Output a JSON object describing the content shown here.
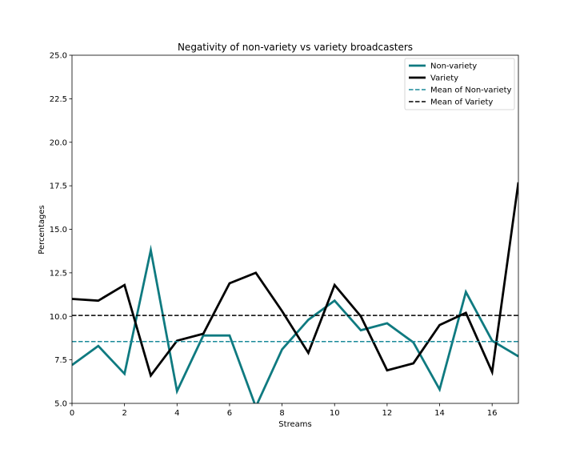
{
  "chart_data": {
    "type": "line",
    "title": "Negativity of non-variety vs variety broadcasters",
    "xlabel": "Streams",
    "ylabel": "Percentages",
    "xlim": [
      0,
      17
    ],
    "ylim": [
      5.0,
      25.0
    ],
    "x_ticks": [
      0,
      2,
      4,
      6,
      8,
      10,
      12,
      14,
      16
    ],
    "y_ticks": [
      5.0,
      7.5,
      10.0,
      12.5,
      15.0,
      17.5,
      20.0,
      22.5,
      25.0
    ],
    "x_tick_labels": [
      "0",
      "2",
      "4",
      "6",
      "8",
      "10",
      "12",
      "14",
      "16"
    ],
    "y_tick_labels": [
      "5.0",
      "7.5",
      "10.0",
      "12.5",
      "15.0",
      "17.5",
      "20.0",
      "22.5",
      "25.0"
    ],
    "grid": false,
    "legend_position": "top-right",
    "x": [
      0,
      1,
      2,
      3,
      4,
      5,
      6,
      7,
      8,
      9,
      10,
      11,
      12,
      13,
      14,
      15,
      16,
      17
    ],
    "series": [
      {
        "name": "Non-variety",
        "color": "#0f7a80",
        "style": "solid",
        "values": [
          7.2,
          8.3,
          6.7,
          13.8,
          5.7,
          8.9,
          8.9,
          4.8,
          8.1,
          9.8,
          10.9,
          9.2,
          9.6,
          8.5,
          5.8,
          11.4,
          8.6,
          7.7
        ]
      },
      {
        "name": "Variety",
        "color": "#000000",
        "style": "solid",
        "values": [
          11.0,
          10.9,
          11.8,
          6.6,
          8.6,
          9.0,
          11.9,
          12.5,
          10.3,
          7.9,
          11.8,
          10.0,
          6.9,
          7.3,
          9.5,
          10.2,
          6.8,
          17.7
        ]
      }
    ],
    "reference_lines": [
      {
        "name": "Mean of Non-variety",
        "value": 8.55,
        "color": "#1a8a9a",
        "style": "dashed"
      },
      {
        "name": "Mean of Variety",
        "value": 10.05,
        "color": "#000000",
        "style": "dashed"
      }
    ]
  }
}
